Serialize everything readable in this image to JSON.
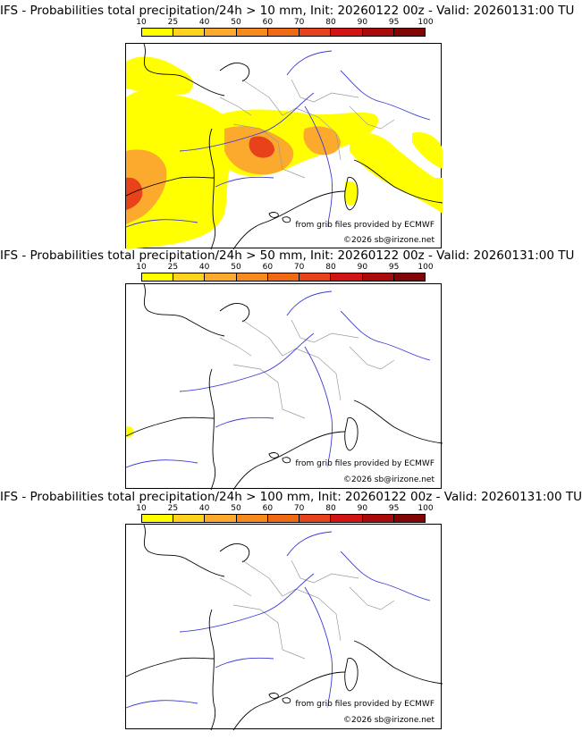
{
  "colorbar": {
    "ticks": [
      "10",
      "25",
      "40",
      "50",
      "60",
      "70",
      "80",
      "90",
      "95",
      "100"
    ],
    "colors": [
      "#ffff00",
      "#ffd21e",
      "#fbaa2d",
      "#f8891c",
      "#f06a14",
      "#e8421a",
      "#d21414",
      "#aa0a0a",
      "#820505",
      "#5a0000"
    ]
  },
  "panels": [
    {
      "title": "IFS - Probabilities total precipitation/24h > 10 mm, Init: 20260122 00z - Valid: 20260131:00 TU",
      "source_credit": "from grib files provided by ECMWF",
      "copyright": "©2026 sb@irizone.net"
    },
    {
      "title": "IFS - Probabilities total precipitation/24h > 50 mm, Init: 20260122 00z - Valid: 20260131:00 TU",
      "source_credit": "from grib files provided by ECMWF",
      "copyright": "©2026 sb@irizone.net"
    },
    {
      "title": "IFS - Probabilities total precipitation/24h > 100 mm, Init: 20260122 00z - Valid: 20260131:00 TU",
      "source_credit": "from grib files provided by ECMWF",
      "copyright": "©2026 sb@irizone.net"
    }
  ],
  "colors": {
    "coast": "#000000",
    "rivers": "#3b3bd6",
    "borders": "#9a9a9a"
  }
}
